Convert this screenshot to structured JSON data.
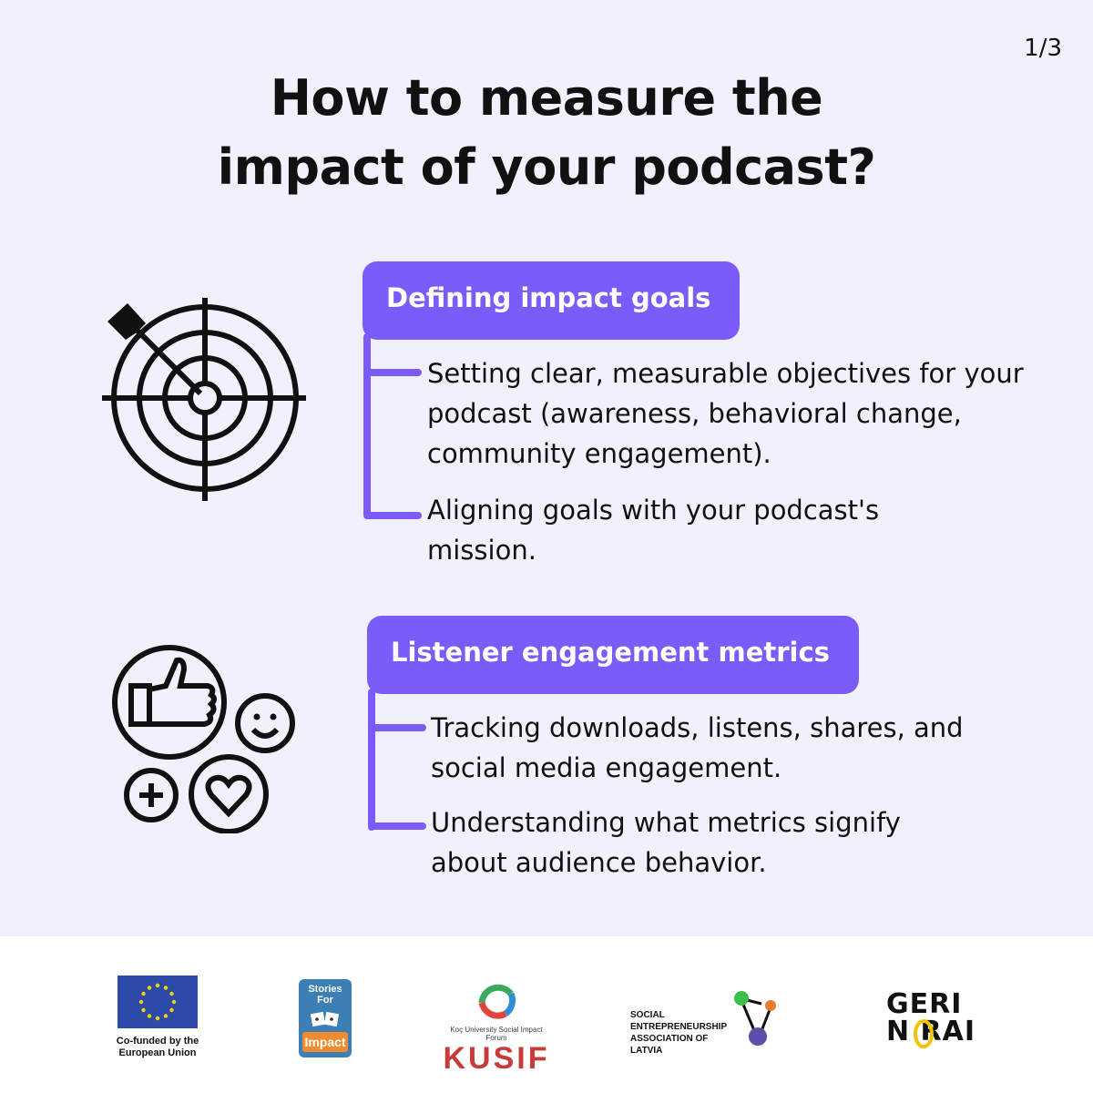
{
  "page_indicator": "1/3",
  "title": {
    "line1": "How to measure the",
    "line2": "impact of your podcast?"
  },
  "sections": [
    {
      "icon": "target-arrow-icon",
      "heading": "Defining impact goals",
      "points": [
        "Setting clear, measurable objectives for your podcast (awareness, behavioral change, community engagement).",
        "Aligning goals with your podcast's mission."
      ]
    },
    {
      "icon": "engagement-icons",
      "heading": "Listener engagement metrics",
      "points": [
        "Tracking downloads, listens, shares, and social media engagement.",
        "Understanding what metrics signify about audience behavior."
      ]
    }
  ],
  "footer": {
    "eu_caption": "Co-funded by the European Union",
    "sfi_top": "Stories For",
    "sfi_bottom": "Impact",
    "kusif_tagline": "Koç University Social Impact Forum",
    "kusif_word": "KUSIF",
    "sea_line1": "SOCIAL",
    "sea_line2": "ENTREPRENEURSHIP",
    "sea_line3": "ASSOCIATION OF LATVIA",
    "gerinorai_line1": "GERI",
    "gerinorai_line2": "N  RAI"
  },
  "colors": {
    "background": "#f0f1fd",
    "accent": "#7b5cfa",
    "footer": "#ffffff"
  }
}
